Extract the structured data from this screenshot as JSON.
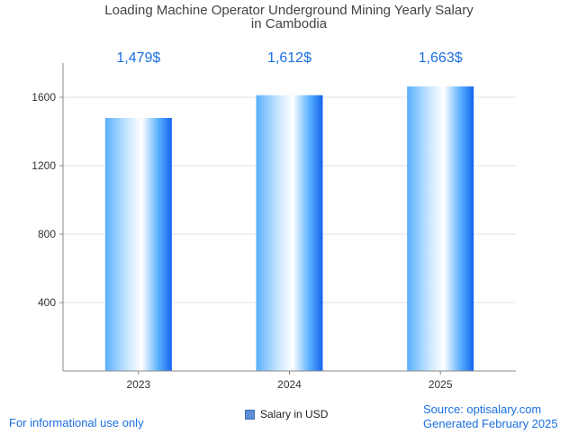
{
  "chart_data": {
    "type": "bar",
    "title_line1": "Loading Machine Operator Underground Mining Yearly Salary",
    "title_line2": "in Cambodia",
    "categories": [
      "2023",
      "2024",
      "2025"
    ],
    "series": [
      {
        "name": "Salary in USD",
        "values": [
          1479,
          1612,
          1663
        ]
      }
    ],
    "data_labels": [
      "1,479$",
      "1,612$",
      "1,663$"
    ],
    "y_ticks": [
      "400",
      "800",
      "1200",
      "1600"
    ],
    "ylim": [
      0,
      1800
    ],
    "grid": true,
    "legend_position": "bottom-center"
  },
  "colors": {
    "bar_light": "#cfe9ff",
    "bar_mid": "#5ab0ff",
    "bar_dark": "#1565f0",
    "label": "#1a6fe0",
    "grid": "#e2e2e2",
    "axis": "#888888"
  },
  "footer": {
    "info": "For informational use only",
    "source": "Source: optisalary.com",
    "generated": "Generated February 2025"
  }
}
